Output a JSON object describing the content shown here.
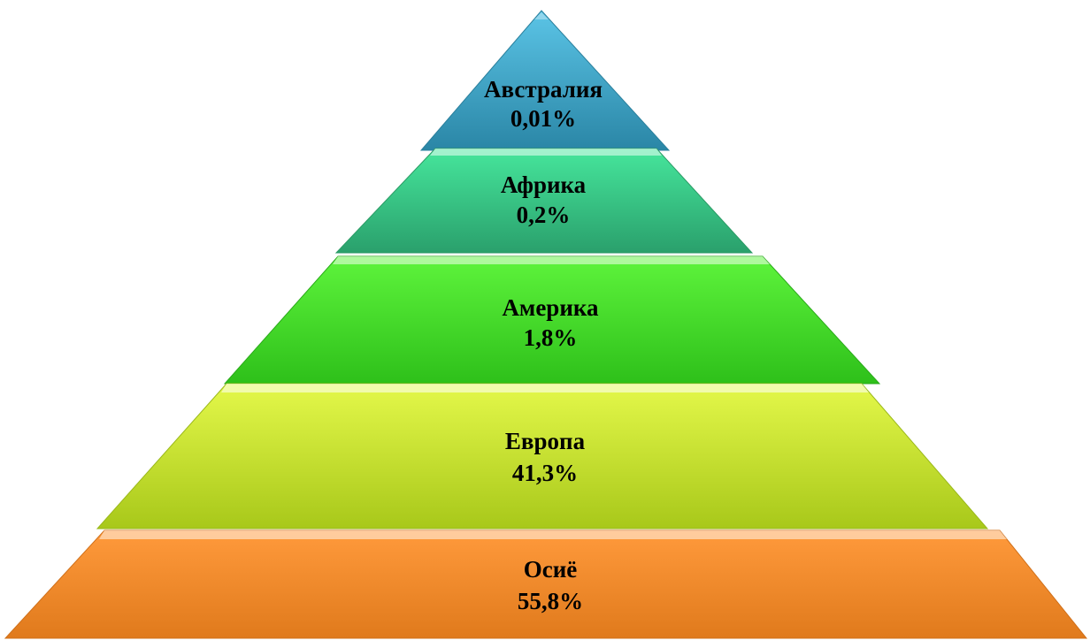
{
  "pyramid": {
    "tiers": [
      {
        "name": "Австралия",
        "value": "0,01%",
        "color_top": "#5bc4e6",
        "color_bottom": "#2a86a6"
      },
      {
        "name": "Африка",
        "value": "0,2%",
        "color_top": "#46e69c",
        "color_bottom": "#2aa06c"
      },
      {
        "name": "Америка",
        "value": "1,8%",
        "color_top": "#5ef43c",
        "color_bottom": "#2ec01a"
      },
      {
        "name": "Европа",
        "value": "41,3%",
        "color_top": "#e4f84a",
        "color_bottom": "#a8c81a"
      },
      {
        "name": "Осиё",
        "value": "55,8%",
        "color_top": "#ff9a3c",
        "color_bottom": "#e07a1c"
      }
    ]
  }
}
